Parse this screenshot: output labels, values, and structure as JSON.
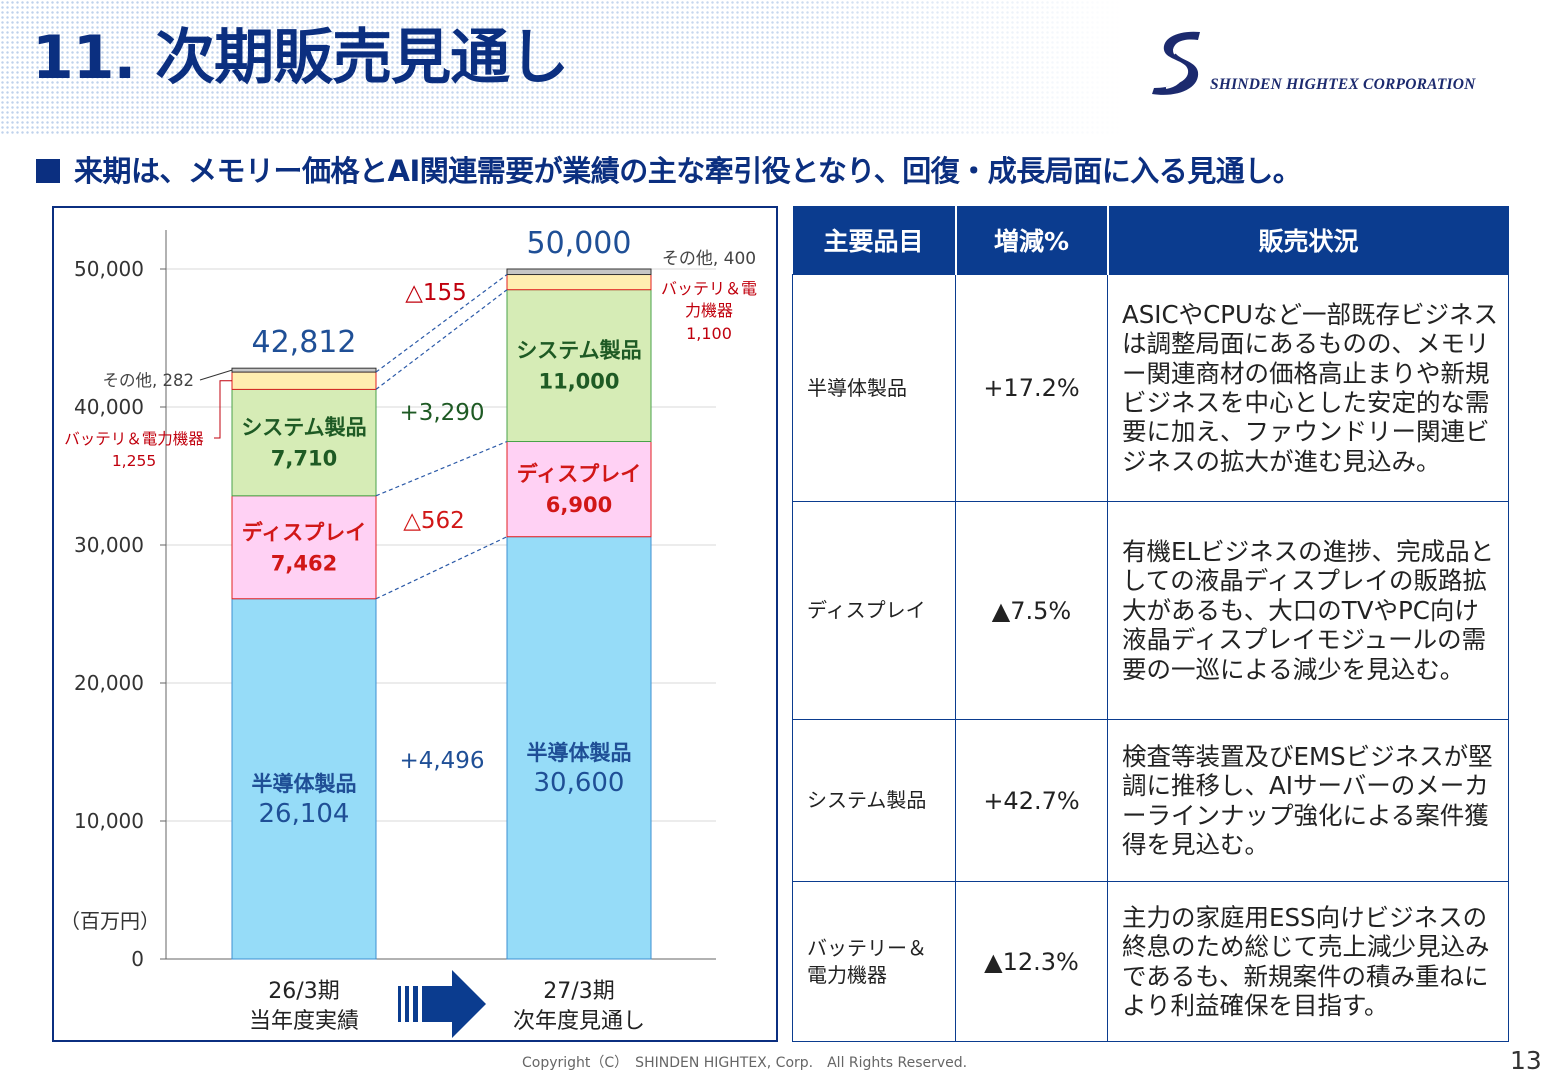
{
  "title": "11. 次期販売見通し",
  "company": "SHINDEN HIGHTEX CORPORATION",
  "subtitle": "来期は、メモリー価格とAI関連需要が業績の主な牽引役となり、回復・成長局面に入る見通し。",
  "chart_data": {
    "type": "bar",
    "stacked": true,
    "unit_label": "（百万円）",
    "ylim": [
      0,
      55000
    ],
    "yticks": [
      "0",
      "10,000",
      "20,000",
      "30,000",
      "40,000",
      "50,000"
    ],
    "categories": [
      {
        "line1": "26/3期",
        "line2": "当年度実績",
        "total": 42812,
        "total_label": "42,812"
      },
      {
        "line1": "27/3期",
        "line2": "次年度見通し",
        "total": 50000,
        "total_label": "50,000"
      }
    ],
    "series": [
      {
        "name": "半導体製品",
        "values": [
          26104,
          30600
        ],
        "labels": [
          "26,104",
          "30,600"
        ],
        "color": "#96dcf8",
        "border": "#3c8fd2",
        "text_color": "#1f4f96"
      },
      {
        "name": "ディスプレイ",
        "values": [
          7462,
          6900
        ],
        "labels": [
          "7,462",
          "6,900"
        ],
        "color": "#ffd1f4",
        "border": "#e02020",
        "text_color": "#d11717"
      },
      {
        "name": "システム製品",
        "values": [
          7710,
          11000
        ],
        "labels": [
          "7,710",
          "11,000"
        ],
        "color": "#d6ecb6",
        "border": "#4aa24a",
        "text_color": "#1e5a24"
      },
      {
        "name": "バッテリ＆電力機器",
        "values": [
          1255,
          1100
        ],
        "labels": [
          "1,255",
          "1,100"
        ],
        "color": "#ffeeb0",
        "border": "#e02020",
        "text_color": "#c0000d"
      },
      {
        "name": "その他",
        "values": [
          282,
          400
        ],
        "labels": [
          "282",
          "400"
        ],
        "color": "#c6c6c6",
        "border": "#333333",
        "text_color": "#444444"
      }
    ],
    "bar1_callouts": {
      "other": "その他, 282",
      "battery_l1": "バッテリ＆電力機器",
      "battery_l2": "1,255"
    },
    "bar2_callouts": {
      "other": "その他, 400",
      "battery_l1": "バッテリ＆電",
      "battery_l2": "力機器",
      "battery_l3": "1,100"
    },
    "changes": [
      {
        "text": "+4,496",
        "color": "#1f4f96"
      },
      {
        "text": "△562",
        "color": "#d11717"
      },
      {
        "text": "+3,290",
        "color": "#1e5a24"
      },
      {
        "text": "△155",
        "color": "#c0000d"
      }
    ]
  },
  "table": {
    "headers": [
      "主要品目",
      "増減%",
      "販売状況"
    ],
    "rows": [
      {
        "category": "半導体製品",
        "change": "+17.2%",
        "status": "ASICやCPUなど一部既存ビジネスは調整局面にあるものの、メモリー関連商材の価格高止まりや新規ビジネスを中心とした安定的な需要に加え、ファウンドリー関連ビジネスの拡大が進む見込み。"
      },
      {
        "category": "ディスプレイ",
        "change": "▲7.5%",
        "status": "有機ELビジネスの進捗、完成品としての液晶ディスプレイの販路拡大があるも、大口のTVやPC向け液晶ディスプレイモジュールの需要の一巡による減少を見込む。"
      },
      {
        "category": "システム製品",
        "change": "+42.7%",
        "status": "検査等装置及びEMSビジネスが堅調に推移し、AIサーバーのメーカーラインナップ強化による案件獲得を見込む。"
      },
      {
        "category": "バッテリー＆電力機器",
        "change": "▲12.3%",
        "status": "主力の家庭用ESS向けビジネスの終息のため総じて売上減少見込みであるも、新規案件の積み重ねにより利益確保を目指す。"
      }
    ]
  },
  "footer": "Copyright（C）　SHINDEN HIGHTEX, Corp.　All Rights Reserved.",
  "page_number": "13"
}
